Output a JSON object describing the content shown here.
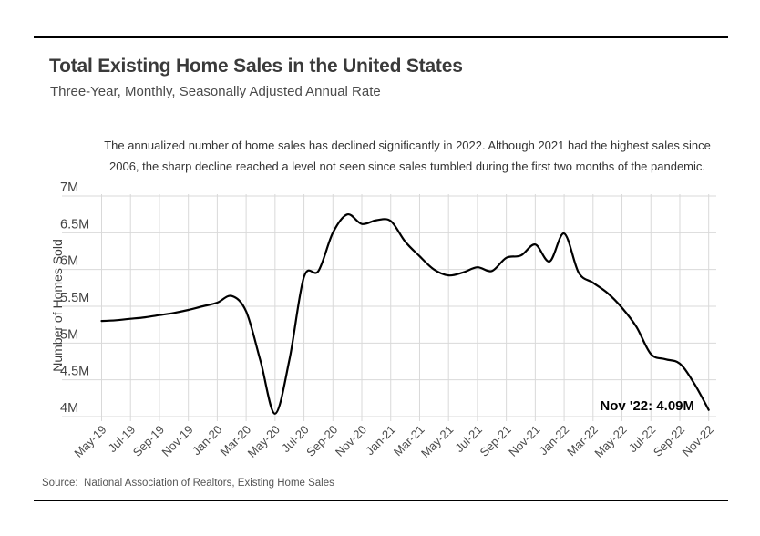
{
  "page": {
    "title": "Total Existing Home Sales in the United States",
    "subtitle": "Three-Year, Monthly, Seasonally Adjusted Annual Rate",
    "annotation_line1": "The annualized number of home sales has declined significantly in 2022. Although 2021 had the highest sales since",
    "annotation_line2": "2006, the sharp decline reached a level not seen since sales tumbled during the first two months of the pandemic.",
    "source": "Source:  National Association of Realtors, Existing Home Sales"
  },
  "chart_data": {
    "type": "line",
    "title": "Total Existing Home Sales in the United States",
    "subtitle": "Three-Year, Monthly, Seasonally Adjusted Annual Rate",
    "xlabel": "",
    "ylabel": "Number of Homes Sold",
    "ylim": [
      3.95,
      7
    ],
    "grid": true,
    "legend_position": "none",
    "line_color": "#000000",
    "grid_color": "#d9d9d9",
    "x": [
      "May-19",
      "Jun-19",
      "Jul-19",
      "Aug-19",
      "Sep-19",
      "Oct-19",
      "Nov-19",
      "Dec-19",
      "Jan-20",
      "Feb-20",
      "Mar-20",
      "Apr-20",
      "May-20",
      "Jun-20",
      "Jul-20",
      "Aug-20",
      "Sep-20",
      "Oct-20",
      "Nov-20",
      "Dec-20",
      "Jan-21",
      "Feb-21",
      "Mar-21",
      "Apr-21",
      "May-21",
      "Jun-21",
      "Jul-21",
      "Aug-21",
      "Sep-21",
      "Oct-21",
      "Nov-21",
      "Dec-21",
      "Jan-22",
      "Feb-22",
      "Mar-22",
      "Apr-22",
      "May-22",
      "Jun-22",
      "Jul-22",
      "Aug-22",
      "Sep-22",
      "Oct-22",
      "Nov-22"
    ],
    "values": [
      5.3,
      5.31,
      5.33,
      5.35,
      5.38,
      5.41,
      5.45,
      5.5,
      5.55,
      5.64,
      5.43,
      4.75,
      4.04,
      4.78,
      5.9,
      5.98,
      6.5,
      6.75,
      6.62,
      6.67,
      6.66,
      6.38,
      6.18,
      6.0,
      5.92,
      5.96,
      6.03,
      5.98,
      6.16,
      6.19,
      6.34,
      6.11,
      6.49,
      5.96,
      5.82,
      5.68,
      5.48,
      5.22,
      4.85,
      4.78,
      4.72,
      4.45,
      4.09
    ],
    "xtick_labels": [
      "May-19",
      "Jul-19",
      "Sep-19",
      "Nov-19",
      "Jan-20",
      "Mar-20",
      "May-20",
      "Jul-20",
      "Sep-20",
      "Nov-20",
      "Jan-21",
      "Mar-21",
      "May-21",
      "Jul-21",
      "Sep-21",
      "Nov-21",
      "Jan-22",
      "Mar-22",
      "May-22",
      "Jul-22",
      "Sep-22",
      "Nov-22"
    ],
    "yticks": [
      7,
      6.5,
      6,
      5.5,
      5,
      4.5,
      4
    ],
    "ytick_labels": [
      "7M",
      "6.5M",
      "6M",
      "5.5M",
      "5M",
      "4.5M",
      "4M"
    ],
    "end_point_label": "Nov '22: 4.09M",
    "end_point_value": "4.09M",
    "end_point_month": "Nov '22"
  }
}
